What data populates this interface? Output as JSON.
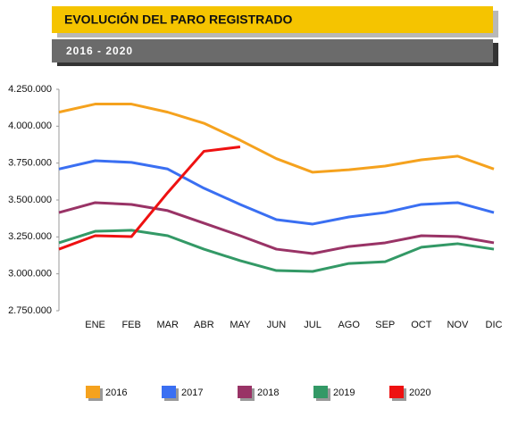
{
  "chart_data": {
    "type": "line",
    "title": "EVOLUCIÓN DEL PARO REGISTRADO",
    "subtitle": "2016 - 2020",
    "categories": [
      null,
      "ENE",
      "FEB",
      "MAR",
      "ABR",
      "MAY",
      "JUN",
      "JUL",
      "AGO",
      "SEP",
      "OCT",
      "NOV",
      "DIC"
    ],
    "ylim": [
      2750000,
      4250000
    ],
    "yticks": [
      {
        "value": 2750000,
        "label": "2.750.000"
      },
      {
        "value": 3000000,
        "label": "3.000.000"
      },
      {
        "value": 3250000,
        "label": "3.250.000"
      },
      {
        "value": 3500000,
        "label": "3.500.000"
      },
      {
        "value": 3750000,
        "label": "3.750.000"
      },
      {
        "value": 4000000,
        "label": "4.000.000"
      },
      {
        "value": 4250000,
        "label": "4.250.000"
      }
    ],
    "grid": false,
    "legend": "bottom",
    "series": [
      {
        "name": "2016",
        "color": "#f5a21e",
        "values": [
          4095000,
          4150000,
          4150000,
          4095000,
          4020000,
          3905000,
          3780000,
          3688000,
          3705000,
          3730000,
          3772000,
          3797000,
          3710000
        ]
      },
      {
        "name": "2017",
        "color": "#3a6ff2",
        "values": [
          3710000,
          3766000,
          3755000,
          3710000,
          3580000,
          3470000,
          3367000,
          3337000,
          3385000,
          3415000,
          3470000,
          3482000,
          3415000
        ]
      },
      {
        "name": "2018",
        "color": "#993366",
        "values": [
          3415000,
          3482000,
          3470000,
          3428000,
          3343000,
          3258000,
          3167000,
          3137000,
          3185000,
          3210000,
          3258000,
          3252000,
          3210000
        ]
      },
      {
        "name": "2019",
        "color": "#339966",
        "values": [
          3210000,
          3288000,
          3295000,
          3258000,
          3167000,
          3089000,
          3022000,
          3016000,
          3070000,
          3082000,
          3180000,
          3204000,
          3167000
        ]
      },
      {
        "name": "2020",
        "color": "#ee1111",
        "values": [
          3167000,
          3258000,
          3252000,
          3550000,
          3830000,
          3860000,
          null,
          null,
          null,
          null,
          null,
          null,
          null
        ]
      }
    ]
  }
}
